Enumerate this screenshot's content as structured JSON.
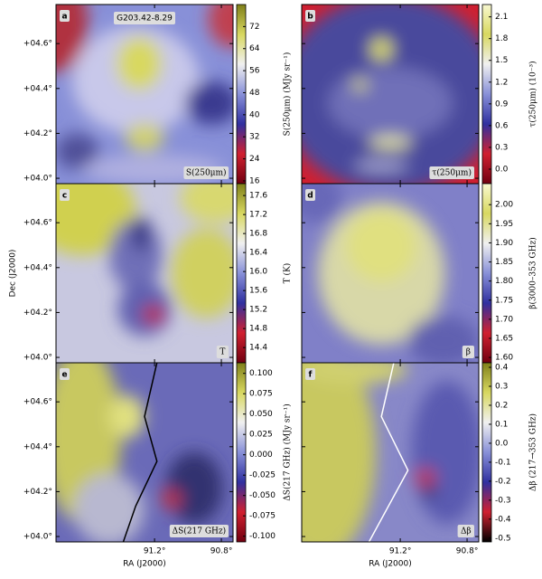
{
  "figure": {
    "x_label": "RA (J2000)",
    "y_label": "Dec (J2000)",
    "xlim": [
      91.79,
      90.73
    ],
    "ylim": [
      3.976,
      4.774
    ],
    "xticks": [
      {
        "value": 91.2,
        "label": "91.2°"
      },
      {
        "value": 90.8,
        "label": "90.8°"
      }
    ],
    "yticks": [
      {
        "value": 4.0,
        "label": "+04.0°"
      },
      {
        "value": 4.2,
        "label": "+04.2°"
      },
      {
        "value": 4.4,
        "label": "+04.4°"
      },
      {
        "value": 4.6,
        "label": "+04.6°"
      }
    ],
    "panels": [
      {
        "letter": "a",
        "tag": "G203.42-8.29",
        "caption": "S(250μm)",
        "colorbar": {
          "label": "S(250μm) (MJy sr⁻¹)",
          "lim": [
            15,
            80
          ],
          "ticks": [
            16,
            24,
            32,
            40,
            48,
            56,
            64,
            72
          ],
          "colors": [
            "#700010",
            "#d02030",
            "#3030a0",
            "#8890d8",
            "#f0f0f0",
            "#d8d860",
            "#80801a"
          ]
        }
      },
      {
        "letter": "b",
        "caption": "τ(250μm)",
        "colorbar": {
          "label": "τ(250μm) (10⁻³)",
          "lim": [
            -0.2,
            2.27
          ],
          "ticks": [
            {
              "value": 0,
              "label": "0.0"
            },
            0.3,
            0.6,
            0.9,
            1.2,
            1.5,
            1.8,
            2.1
          ],
          "colors": [
            "#700010",
            "#d02030",
            "#3030a0",
            "#8890d8",
            "#f0f0f0",
            "#d8d860",
            "#f8f8d0"
          ]
        }
      },
      {
        "letter": "c",
        "caption": "T",
        "colorbar": {
          "label": "T (K)",
          "lim": [
            14.08,
            17.85
          ],
          "ticks": [
            14.4,
            14.8,
            15.2,
            15.6,
            {
              "value": 16,
              "label": "16.0"
            },
            16.4,
            16.8,
            17.2,
            17.6
          ],
          "colors": [
            "#700010",
            "#d02030",
            "#3030a0",
            "#8890d8",
            "#f0f0f0",
            "#d8d860",
            "#80801a"
          ]
        }
      },
      {
        "letter": "d",
        "caption": "β",
        "colorbar": {
          "label": "β(3000–353 GHz)",
          "lim": [
            1.586,
            2.055
          ],
          "ticks": [
            {
              "value": 1.6,
              "label": "1.60"
            },
            1.65,
            {
              "value": 1.7,
              "label": "1.70"
            },
            1.75,
            {
              "value": 1.8,
              "label": "1.80"
            },
            1.85,
            {
              "value": 1.9,
              "label": "1.90"
            },
            1.95,
            {
              "value": 2,
              "label": "2.00"
            }
          ],
          "colors": [
            "#700010",
            "#d02030",
            "#3030a0",
            "#8890d8",
            "#f0f0f0",
            "#d8d860",
            "#f8f8d0"
          ]
        }
      },
      {
        "letter": "e",
        "caption": "ΔS(217 GHz)",
        "colorbar": {
          "label": "ΔS(217 GHz) (MJy sr⁻¹)",
          "lim": [
            -0.107,
            0.113
          ],
          "ticks": [
            {
              "value": -0.1,
              "label": "-0.100"
            },
            -0.075,
            {
              "value": -0.05,
              "label": "-0.050"
            },
            -0.025,
            {
              "value": 0,
              "label": "0.000"
            },
            0.025,
            {
              "value": 0.05,
              "label": "0.050"
            },
            0.075,
            {
              "value": 0.1,
              "label": "0.100"
            }
          ],
          "colors": [
            "#700010",
            "#d02030",
            "#3030a0",
            "#8890d8",
            "#f0f0f0",
            "#d8d860",
            "#80801a"
          ]
        }
      },
      {
        "letter": "f",
        "caption": "Δβ",
        "colorbar": {
          "label": "Δβ (217→353 GHz)",
          "lim": [
            -0.52,
            0.424
          ],
          "ticks": [
            -0.5,
            -0.4,
            -0.3,
            -0.2,
            -0.1,
            {
              "value": 0,
              "label": "0.0"
            },
            0.1,
            0.2,
            0.3,
            0.4
          ],
          "colors": [
            "#000000",
            "#d02030",
            "#3030a0",
            "#8890d8",
            "#f0f0f0",
            "#d8d860",
            "#80801a"
          ]
        }
      }
    ]
  }
}
